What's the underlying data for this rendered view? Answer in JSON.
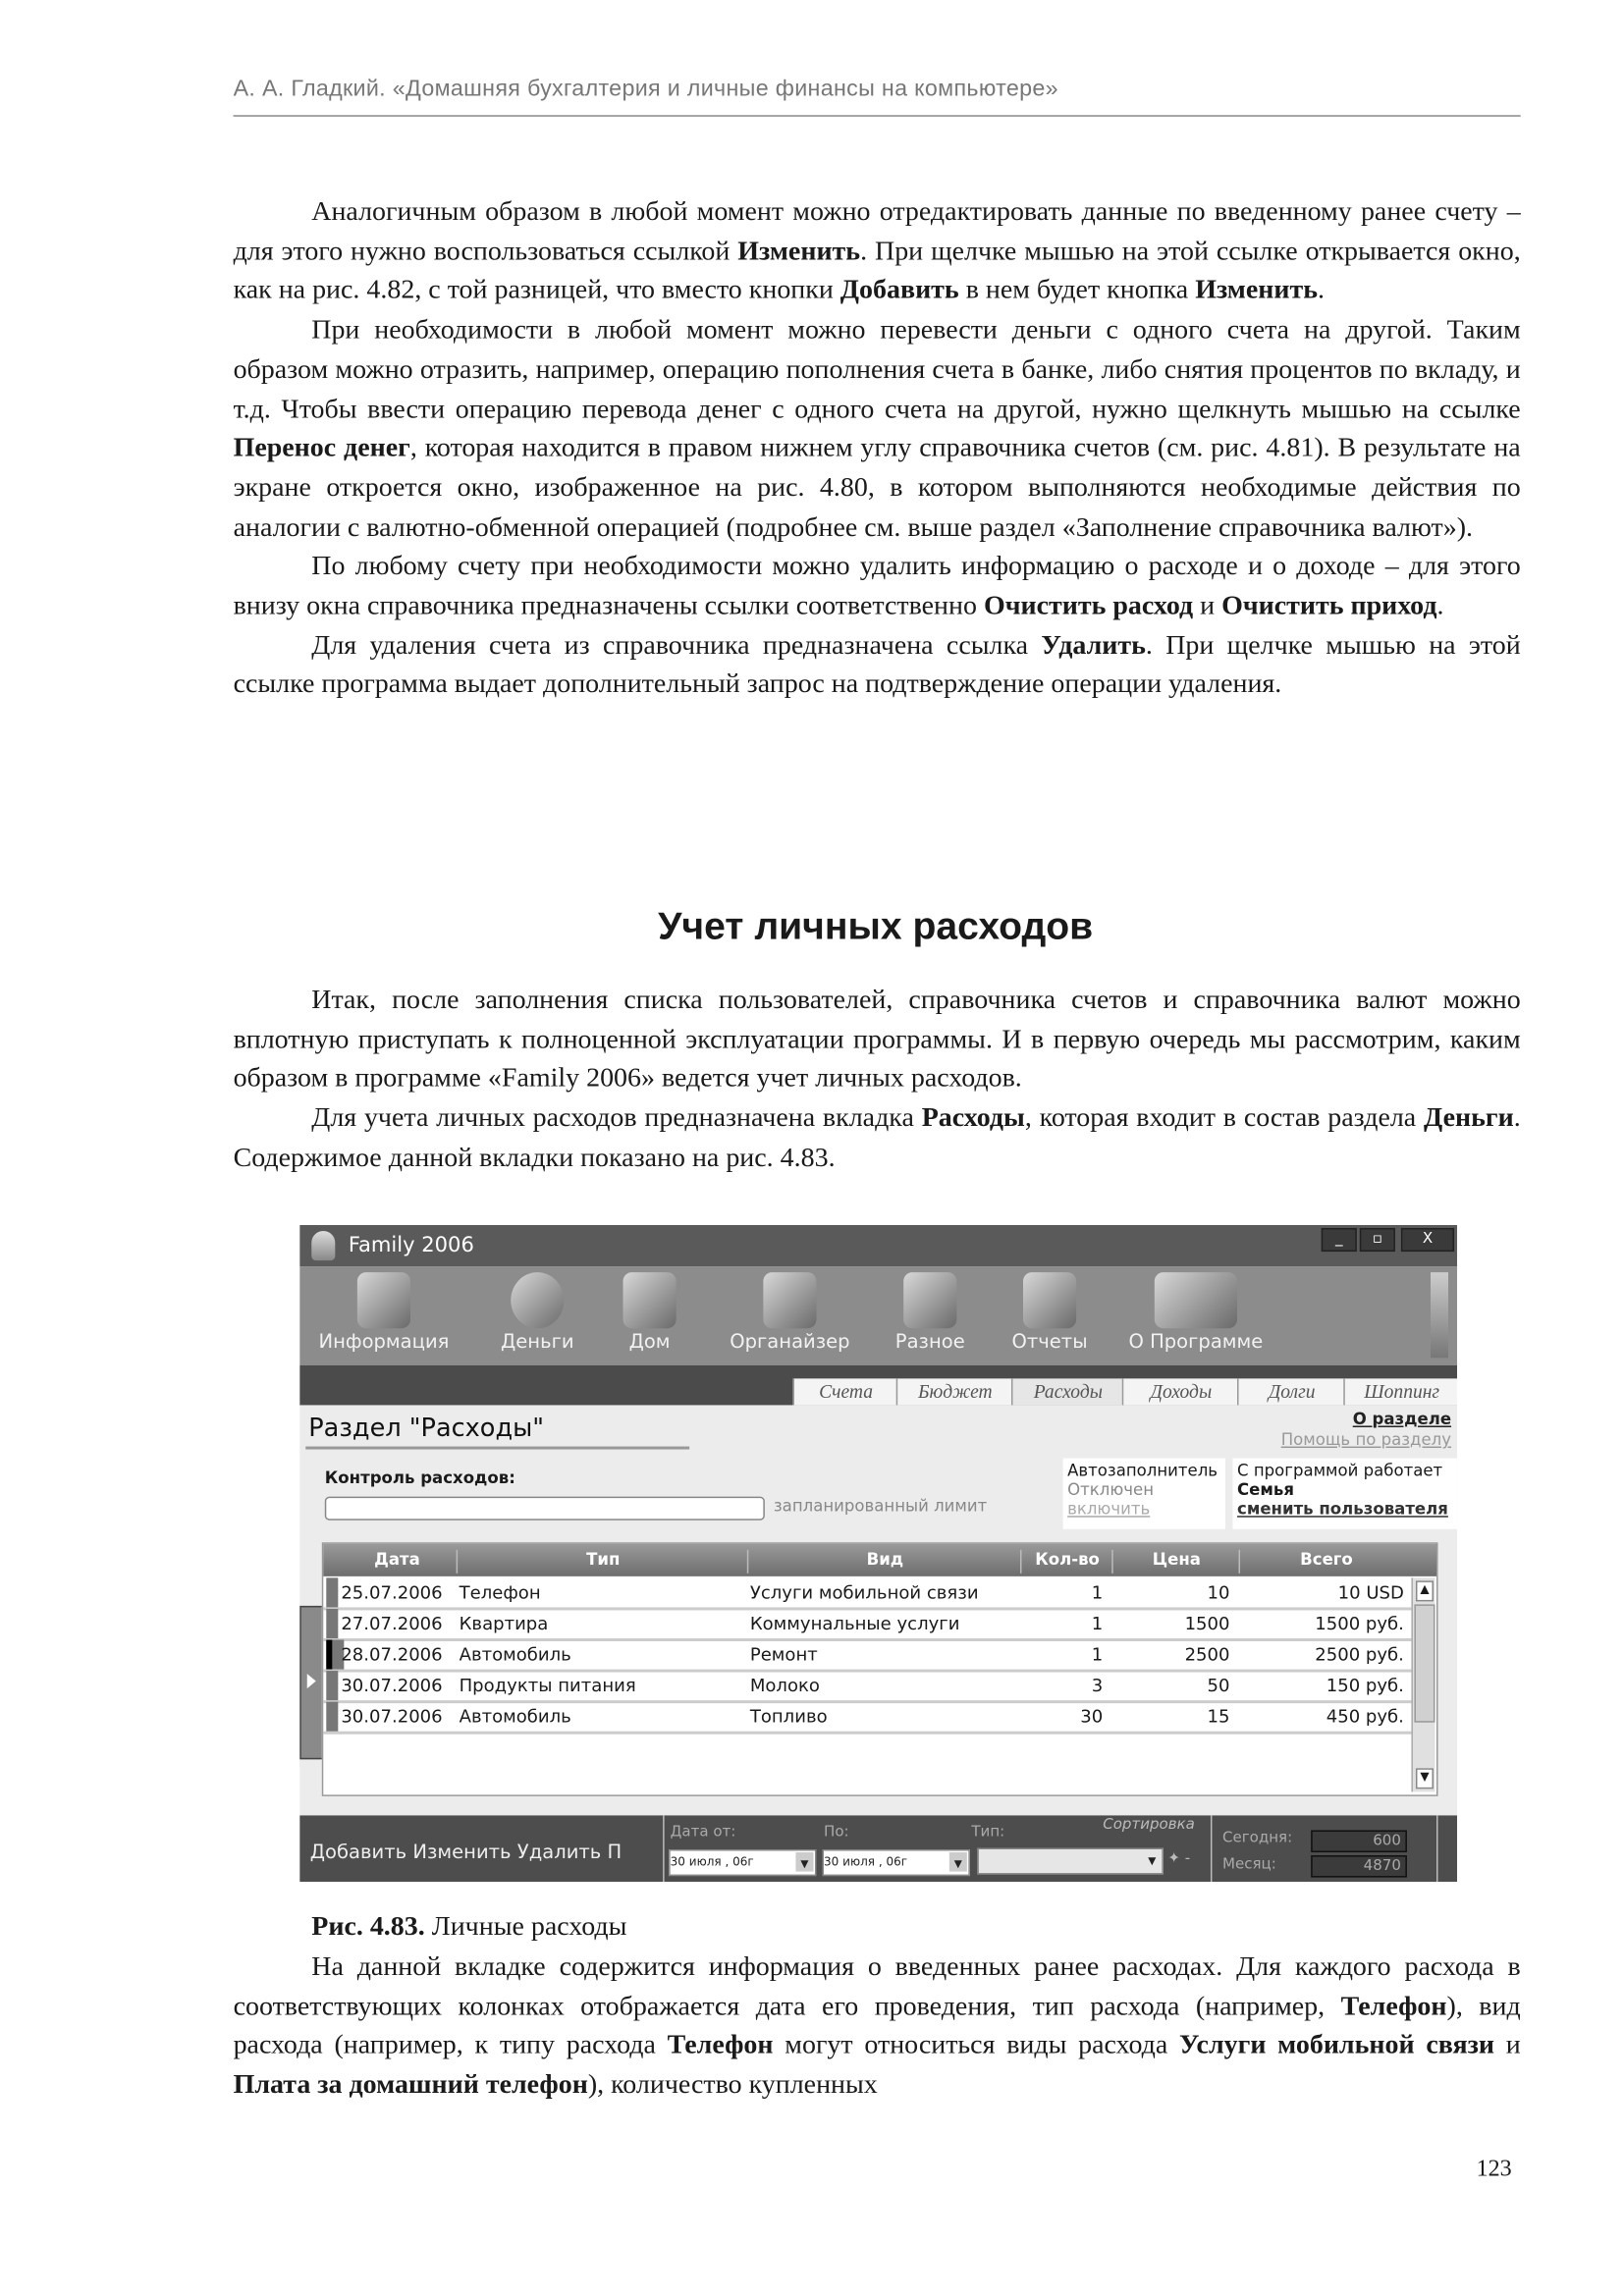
{
  "running_header": "А. А. Гладкий. «Домашняя бухгалтерия и личные финансы на компьютере»",
  "paragraphs_top": [
    [
      {
        "t": "Аналогичным образом в любой момент можно отредактировать данные по введенному ранее счету – для этого нужно воспользоваться ссылкой "
      },
      {
        "t": "Изменить",
        "b": true
      },
      {
        "t": ". При щелчке мышью на этой ссылке открывается окно, как на рис. 4.82, с той разницей, что вместо кнопки "
      },
      {
        "t": "Добавить",
        "b": true
      },
      {
        "t": " в нем будет кнопка "
      },
      {
        "t": "Изменить",
        "b": true
      },
      {
        "t": "."
      }
    ],
    [
      {
        "t": "При необходимости в любой момент можно перевести деньги с одного счета на другой. Таким образом можно отразить, например, операцию пополнения счета в банке, либо снятия процентов по вкладу, и т.д. Чтобы ввести операцию перевода денег с одного счета на другой, нужно щелкнуть мышью на ссылке "
      },
      {
        "t": "Перенос денег",
        "b": true
      },
      {
        "t": ", которая находится в правом нижнем углу справочника счетов (см. рис. 4.81). В результате на экране откроется окно, изображенное на рис. 4.80, в котором выполняются необходимые действия по аналогии с валютно-обменной операцией (подробнее см. выше раздел «Заполнение справочника валют»)."
      }
    ],
    [
      {
        "t": "По любому счету при необходимости можно удалить информацию о расходе и о доходе – для этого внизу окна справочника предназначены ссылки соответственно "
      },
      {
        "t": "Очистить рас­ход",
        "b": true
      },
      {
        "t": " и "
      },
      {
        "t": "Очистить приход",
        "b": true
      },
      {
        "t": "."
      }
    ],
    [
      {
        "t": "Для удаления счета из справочника предназначена ссылка "
      },
      {
        "t": "Удалить",
        "b": true
      },
      {
        "t": ". При щелчке мышью на этой ссылке программа выдает дополнительный запрос на подтверждение опе­рации удаления."
      }
    ]
  ],
  "section_heading": "Учет личных расходов",
  "paragraphs_mid": [
    [
      {
        "t": "Итак, после заполнения списка пользователей, справочника счетов и справочника валют можно вплотную приступать к полноценной эксплуатации программы. И в первую очередь мы рассмотрим, каким образом в программе «Family 2006» ведется учет личных расходов."
      }
    ],
    [
      {
        "t": "Для учета личных расходов предназначена вкладка "
      },
      {
        "t": "Расходы",
        "b": true
      },
      {
        "t": ", которая входит в состав раздела "
      },
      {
        "t": "Деньги",
        "b": true
      },
      {
        "t": ". Содержимое данной вкладки показано на рис. 4.83."
      }
    ]
  ],
  "figure": {
    "app_title": "Family 2006",
    "window_buttons": [
      "_",
      "▫",
      "X"
    ],
    "toolbar": [
      {
        "label": "Информация",
        "icon": "info-album-icon"
      },
      {
        "label": "Деньги",
        "icon": "money-icon"
      },
      {
        "label": "Дом",
        "icon": "house-icon"
      },
      {
        "label": "Органайзер",
        "icon": "calendar-clock-icon"
      },
      {
        "label": "Разное",
        "icon": "misc-icon"
      },
      {
        "label": "Отчеты",
        "icon": "reports-icon"
      },
      {
        "label": "О Программе",
        "icon": "about-icon"
      }
    ],
    "tabs": [
      "Счета",
      "Бюджет",
      "Расходы",
      "Доходы",
      "Долги",
      "Шоппинг"
    ],
    "active_tab": "Расходы",
    "section_title": "Раздел \"Расходы\"",
    "about_link": "О разделе",
    "help_link": "Помощь по разделу",
    "control_label": "Контроль расходов:",
    "limit_value": "",
    "limit_label": "запланированный лимит",
    "autofill": {
      "title": "Автозаполнитель",
      "status": "Отключен",
      "action": "включить"
    },
    "user": {
      "title": "С программой работает",
      "name": "Семья",
      "action": "сменить пользователя"
    },
    "table": {
      "columns": [
        "Дата",
        "Тип",
        "Вид",
        "Кол-во",
        "Цена",
        "Всего"
      ],
      "rows": [
        [
          "25.07.2006",
          "Телефон",
          "Услуги мобильной связи",
          "1",
          "10",
          "10 USD"
        ],
        [
          "27.07.2006",
          "Квартира",
          "Коммунальные услуги",
          "1",
          "1500",
          "1500 руб."
        ],
        [
          "28.07.2006",
          "Автомобиль",
          "Ремонт",
          "1",
          "2500",
          "2500 руб."
        ],
        [
          "30.07.2006",
          "Продукты питания",
          "Молоко",
          "3",
          "50",
          "150 руб."
        ],
        [
          "30.07.2006",
          "Автомобиль",
          "Топливо",
          "30",
          "15",
          "450 руб."
        ]
      ]
    },
    "bottom": {
      "actions": [
        "Добавить",
        "Изменить",
        "Удалить",
        "П"
      ],
      "date_from_label": "Дата от:",
      "date_from": "30  июля  , 06г",
      "date_to_label": "По:",
      "date_to": "30  июля  , 06г",
      "type_label": "Тип:",
      "type_value": "",
      "sort_label": "Сортировка",
      "today_label": "Сегодня:",
      "today_value": "600",
      "month_label": "Месяц:",
      "month_value": "4870"
    }
  },
  "caption": {
    "num": "Рис. 4.83.",
    "text": " Личные расходы"
  },
  "paragraphs_bottom": [
    [
      {
        "t": "На данной вкладке содержится информация о введенных ранее расходах. Для каждого расхода в соответствующих колонках отображается дата его проведения, тип расхода (напри­мер, "
      },
      {
        "t": "Телефон",
        "b": true
      },
      {
        "t": "), вид расхода (например, к типу расхода "
      },
      {
        "t": "Телефон",
        "b": true
      },
      {
        "t": " могут относиться виды рас­хода "
      },
      {
        "t": "Услуги мобильной связи",
        "b": true
      },
      {
        "t": " и "
      },
      {
        "t": "Плата за домашний телефон",
        "b": true
      },
      {
        "t": "), количество купленных"
      }
    ]
  ],
  "page_number": "123"
}
